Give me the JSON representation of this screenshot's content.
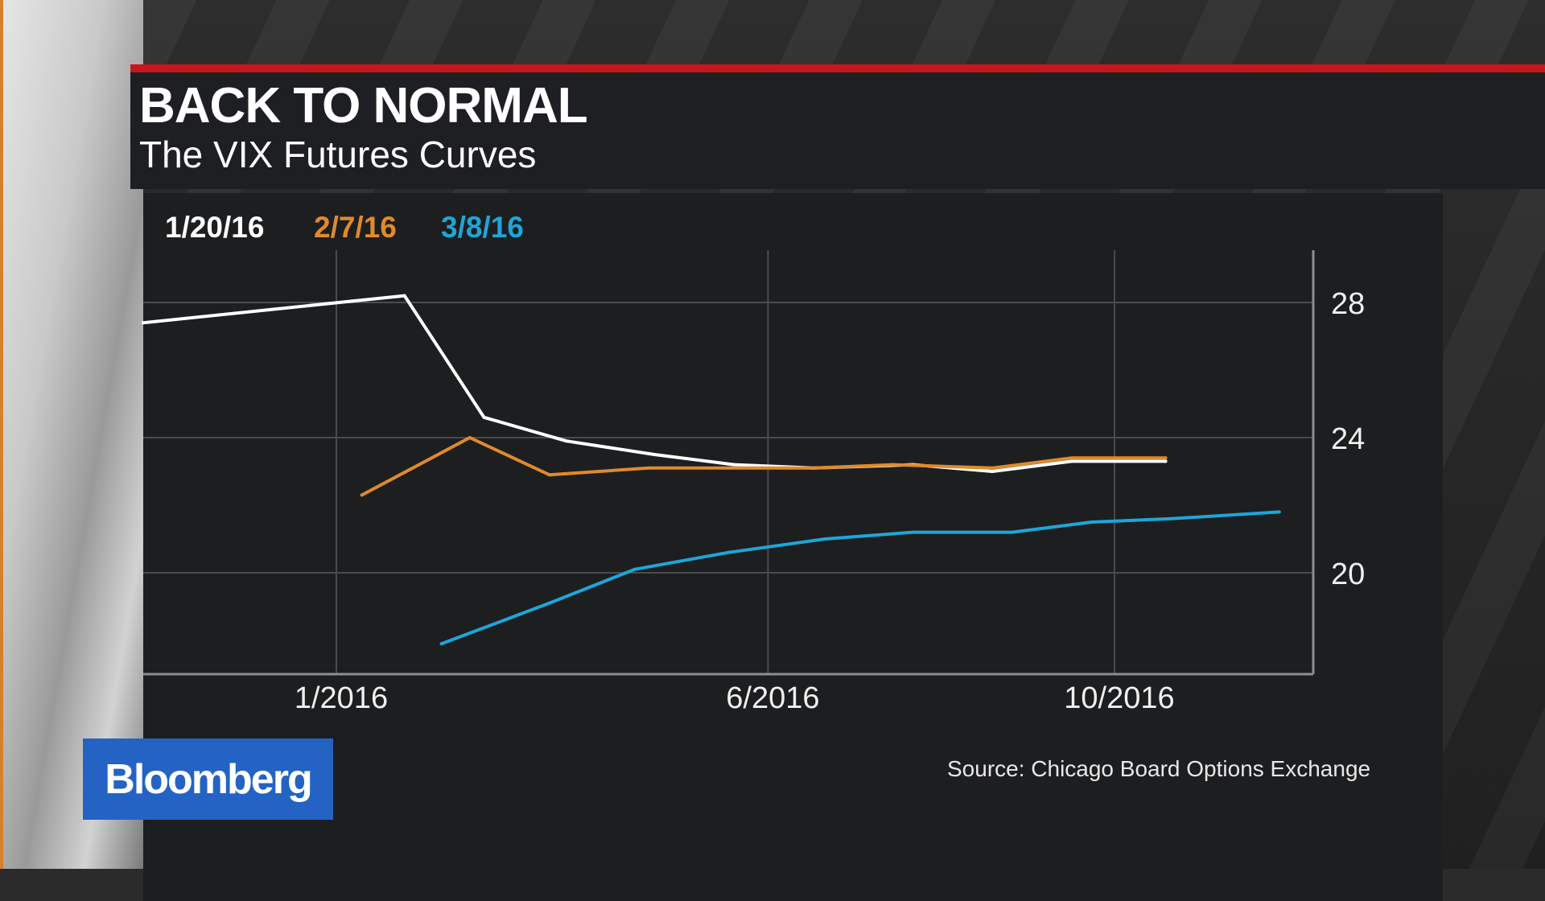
{
  "header": {
    "title": "BACK TO NORMAL",
    "subtitle": "The VIX Futures Curves"
  },
  "source": "Source: Chicago Board Options Exchange",
  "brand": {
    "logo_text": "Bloomberg"
  },
  "colors": {
    "accent_red": "#c8161d",
    "brand_blue": "#2463c4",
    "series_white": "#ffffff",
    "series_orange": "#e08a2c",
    "series_blue": "#1ea6d8"
  },
  "chart_data": {
    "type": "line",
    "title": "BACK TO NORMAL",
    "subtitle": "The VIX Futures Curves",
    "x_axis": {
      "type": "date",
      "range": [
        "2015-10-25",
        "2016-12-10"
      ],
      "ticks": [
        {
          "value": "2016-01-01",
          "label": "1/2016"
        },
        {
          "value": "2016-06-01",
          "label": "6/2016"
        },
        {
          "value": "2016-10-01",
          "label": "10/2016"
        }
      ]
    },
    "y_axis": {
      "position": "right",
      "range": [
        17,
        29.5
      ],
      "ticks": [
        20,
        24,
        28
      ],
      "grid": true
    },
    "legend": {
      "placement": "top-left"
    },
    "series": [
      {
        "name": "1/20/16",
        "color": "#ffffff",
        "points": [
          [
            "2015-10-25",
            27.4
          ],
          [
            "2016-01-25",
            28.2
          ],
          [
            "2016-02-22",
            24.6
          ],
          [
            "2016-03-22",
            23.9
          ],
          [
            "2016-04-22",
            23.5
          ],
          [
            "2016-05-20",
            23.2
          ],
          [
            "2016-06-17",
            23.1
          ],
          [
            "2016-07-22",
            23.2
          ],
          [
            "2016-08-19",
            23.0
          ],
          [
            "2016-09-16",
            23.3
          ],
          [
            "2016-10-19",
            23.3
          ]
        ]
      },
      {
        "name": "2/7/16",
        "color": "#e08a2c",
        "points": [
          [
            "2016-01-10",
            22.3
          ],
          [
            "2016-02-17",
            24.0
          ],
          [
            "2016-03-16",
            22.9
          ],
          [
            "2016-04-20",
            23.1
          ],
          [
            "2016-05-18",
            23.1
          ],
          [
            "2016-06-17",
            23.1
          ],
          [
            "2016-07-15",
            23.2
          ],
          [
            "2016-08-19",
            23.1
          ],
          [
            "2016-09-16",
            23.4
          ],
          [
            "2016-10-19",
            23.4
          ]
        ]
      },
      {
        "name": "3/8/16",
        "color": "#1ea6d8",
        "points": [
          [
            "2016-02-07",
            17.9
          ],
          [
            "2016-03-16",
            19.1
          ],
          [
            "2016-04-15",
            20.1
          ],
          [
            "2016-05-18",
            20.6
          ],
          [
            "2016-06-21",
            21.0
          ],
          [
            "2016-07-22",
            21.2
          ],
          [
            "2016-08-26",
            21.2
          ],
          [
            "2016-09-23",
            21.5
          ],
          [
            "2016-10-21",
            21.6
          ],
          [
            "2016-11-28",
            21.8
          ]
        ]
      }
    ]
  }
}
